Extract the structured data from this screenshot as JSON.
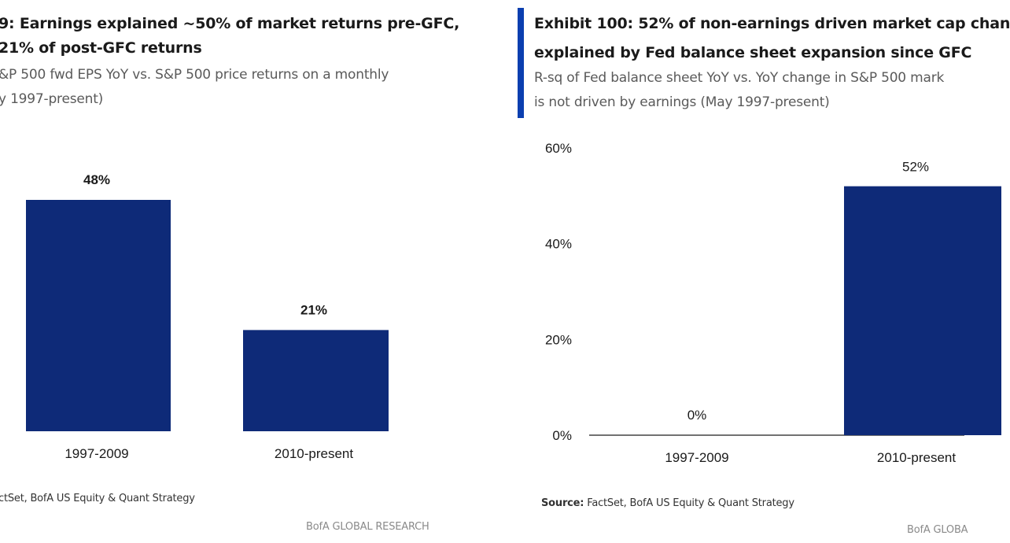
{
  "colors": {
    "bar": "#0e2a78",
    "accent": "#0b3fb0",
    "axis": "#444444"
  },
  "left": {
    "title_line1": "9: Earnings explained ~50% of market returns pre-GFC,",
    "title_line2": "21% of post-GFC returns",
    "subtitle_line1": "&P 500 fwd EPS YoY vs. S&P 500 price returns on a monthly",
    "subtitle_line2": "y 1997-present)",
    "source": "ctSet, BofA US Equity & Quant Strategy",
    "footer": "BofA GLOBAL RESEARCH"
  },
  "right": {
    "title_line1": "Exhibit 100: 52% of non-earnings driven market cap chan",
    "title_line2": "explained by Fed balance sheet expansion since GFC",
    "subtitle_line1": "R-sq of Fed balance sheet YoY vs. YoY change in S&P 500 mark",
    "subtitle_line2": "is not driven by earnings (May 1997-present)",
    "source_label": "Source:",
    "source_text": " FactSet, BofA US Equity & Quant Strategy",
    "footer": "BofA GLOBA"
  },
  "chart_data": [
    {
      "type": "bar",
      "categories": [
        "1997-2009",
        "2010-present"
      ],
      "values": [
        48,
        21
      ],
      "data_labels": [
        "48%",
        "21%"
      ],
      "ylim": [
        0,
        60
      ],
      "grid": false
    },
    {
      "type": "bar",
      "categories": [
        "1997-2009",
        "2010-present"
      ],
      "values": [
        0,
        52
      ],
      "data_labels": [
        "0%",
        "52%"
      ],
      "ylim": [
        0,
        60
      ],
      "yticks": [
        "0%",
        "20%",
        "40%",
        "60%"
      ],
      "grid": false
    }
  ]
}
